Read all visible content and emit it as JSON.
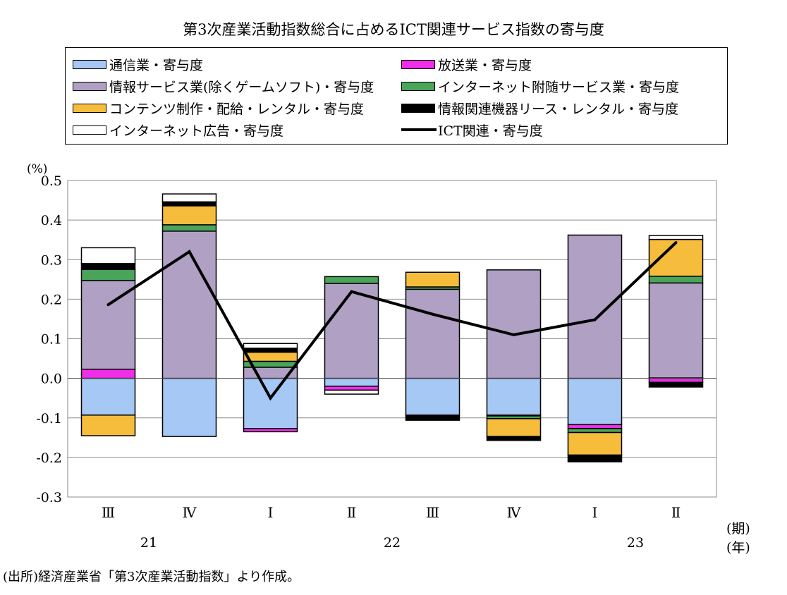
{
  "title": "第3次産業活動指数総合に占めるICT関連サービス指数の寄与度",
  "unit_label": "(%)",
  "period_label": "(期)",
  "year_label": "(年)",
  "source": "(出所)経済産業省「第3次産業活動指数」より作成。",
  "legend": {
    "items": [
      {
        "label": "通信業・寄与度",
        "color": "#a6c8f5"
      },
      {
        "label": "放送業・寄与度",
        "color": "#ee2ee8"
      },
      {
        "label": "情報サービス業(除くゲームソフト)・寄与度",
        "color": "#afa0c4"
      },
      {
        "label": "インターネット附随サービス業・寄与度",
        "color": "#4aa55a"
      },
      {
        "label": "コンテンツ制作・配給・レンタル・寄与度",
        "color": "#f6bd3c"
      },
      {
        "label": "情報関連機器リース・レンタル・寄与度",
        "color": "#000000"
      },
      {
        "label": "インターネット広告・寄与度",
        "color": "#ffffff"
      },
      {
        "label": "ICT関連・寄与度",
        "color": "#000000"
      }
    ]
  },
  "chart_data": {
    "type": "bar",
    "stacked": true,
    "title": "第3次産業活動指数総合に占めるICT関連サービス指数の寄与度",
    "ylabel": "(%)",
    "ylim": [
      -0.3,
      0.5
    ],
    "yticks": [
      "-0.3",
      "-0.2",
      "-0.1",
      "0.0",
      "0.1",
      "0.2",
      "0.3",
      "0.4",
      "0.5"
    ],
    "categories": [
      "Ⅲ",
      "Ⅳ",
      "Ⅰ",
      "Ⅱ",
      "Ⅲ",
      "Ⅳ",
      "Ⅰ",
      "Ⅱ"
    ],
    "years": [
      {
        "label": "21",
        "category_index": 0.5
      },
      {
        "label": "22",
        "category_index": 3.5
      },
      {
        "label": "23",
        "category_index": 6.5
      }
    ],
    "grid": true,
    "series": [
      {
        "name": "通信業・寄与度",
        "color": "#a6c8f5",
        "values": [
          -0.093,
          -0.147,
          -0.127,
          -0.02,
          -0.093,
          -0.093,
          -0.117,
          0.001
        ]
      },
      {
        "name": "放送業・寄与度",
        "color": "#ee2ee8",
        "values": [
          0.023,
          0.0,
          -0.008,
          -0.01,
          0.0,
          -0.002,
          -0.01,
          -0.01
        ]
      },
      {
        "name": "情報サービス業(除くゲームソフト)・寄与度",
        "color": "#afa0c4",
        "values": [
          0.224,
          0.372,
          0.028,
          0.24,
          0.225,
          0.274,
          0.362,
          0.24
        ]
      },
      {
        "name": "インターネット附随サービス業・寄与度",
        "color": "#4aa55a",
        "values": [
          0.028,
          0.016,
          0.015,
          0.017,
          0.006,
          -0.007,
          -0.01,
          0.017
        ]
      },
      {
        "name": "コンテンツ制作・配給・レンタル・寄与度",
        "color": "#f6bd3c",
        "values": [
          -0.052,
          0.048,
          0.023,
          0.0,
          0.037,
          -0.045,
          -0.057,
          0.093
        ]
      },
      {
        "name": "情報関連機器リース・レンタル・寄与度",
        "color": "#000000",
        "values": [
          0.015,
          0.01,
          0.01,
          0.0,
          -0.013,
          -0.01,
          -0.017,
          -0.012
        ]
      },
      {
        "name": "インターネット広告・寄与度",
        "color": "#ffffff",
        "values": [
          0.04,
          0.02,
          0.012,
          -0.01,
          0.0,
          0.0,
          0.0,
          0.01
        ]
      }
    ],
    "line": {
      "name": "ICT関連・寄与度",
      "color": "#000000",
      "values": [
        0.186,
        0.32,
        -0.05,
        0.219,
        0.162,
        0.11,
        0.148,
        0.343
      ]
    }
  }
}
